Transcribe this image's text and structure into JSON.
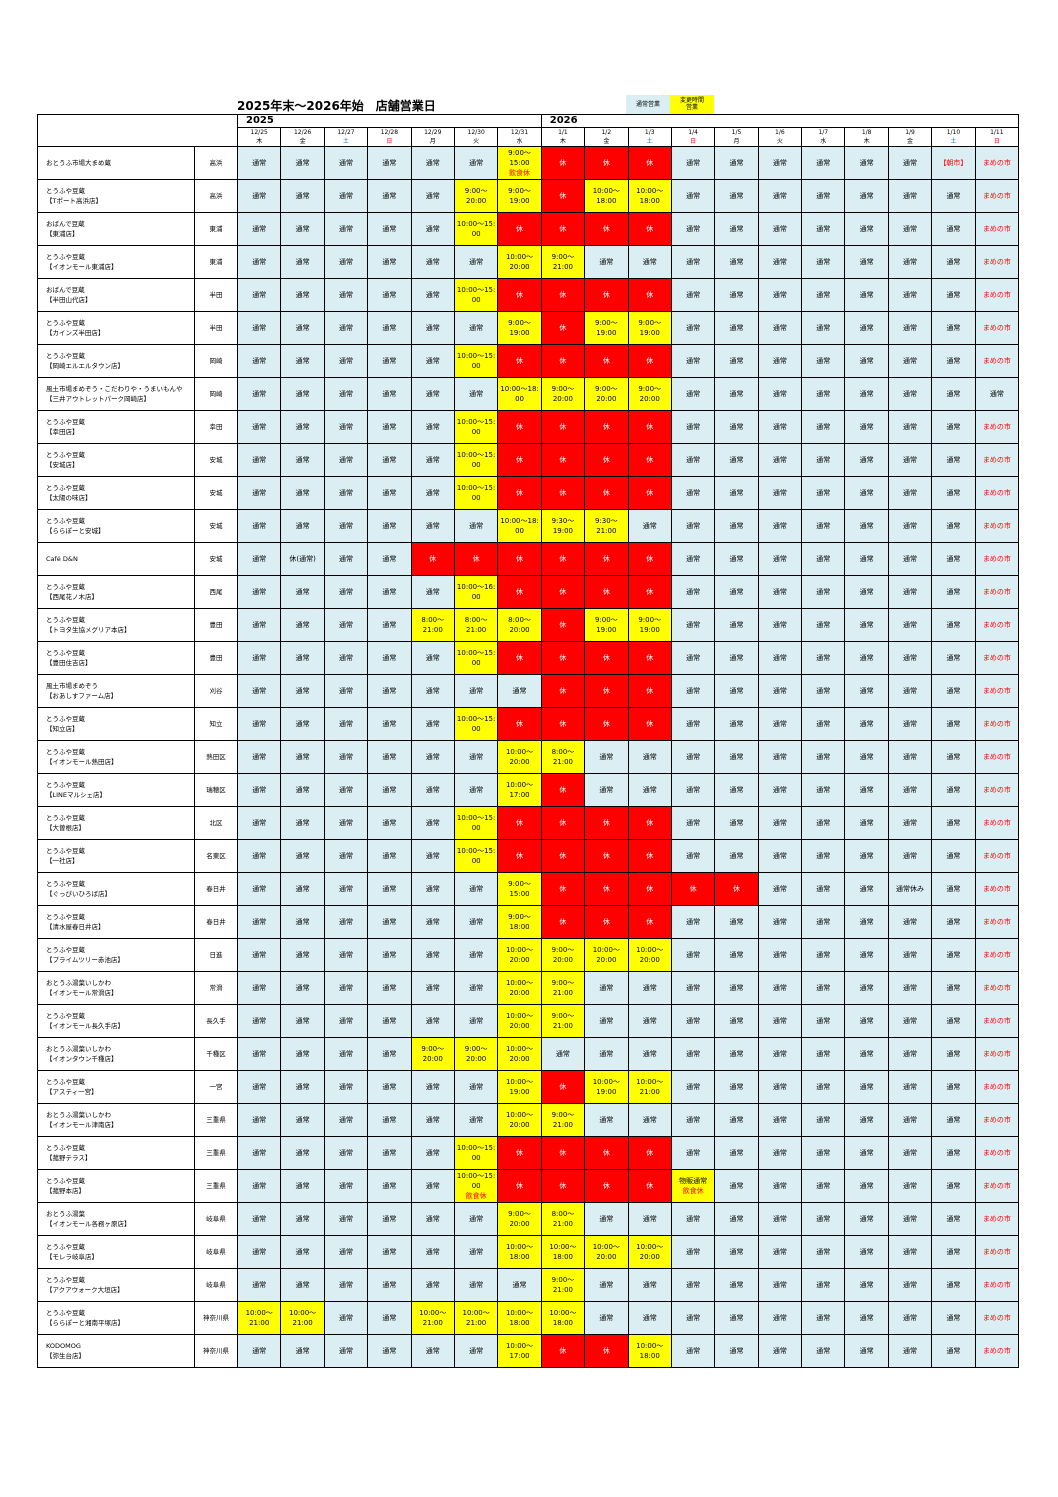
{
  "title": "2025年末～2026年始　店舗営業日",
  "legend": {
    "normal": "通常営業",
    "changed": "変更時間\n営業"
  },
  "years": {
    "y2025": "2025",
    "y2026": "2026"
  },
  "colors": {
    "normal": "#daeef3",
    "changed": "#ffff00",
    "closed": "#ff0000"
  },
  "dates": [
    "12/25",
    "12/26",
    "12/27",
    "12/28",
    "12/29",
    "12/30",
    "12/31",
    "1/1",
    "1/2",
    "1/3",
    "1/4",
    "1/5",
    "1/6",
    "1/7",
    "1/8",
    "1/9",
    "1/10",
    "1/11"
  ],
  "weekdays": [
    {
      "label": "木",
      "c": ""
    },
    {
      "label": "金",
      "c": ""
    },
    {
      "label": "土",
      "c": "b"
    },
    {
      "label": "日",
      "c": "r"
    },
    {
      "label": "月",
      "c": ""
    },
    {
      "label": "火",
      "c": ""
    },
    {
      "label": "水",
      "c": ""
    },
    {
      "label": "木",
      "c": ""
    },
    {
      "label": "金",
      "c": ""
    },
    {
      "label": "土",
      "c": "b"
    },
    {
      "label": "日",
      "c": "r"
    },
    {
      "label": "月",
      "c": ""
    },
    {
      "label": "火",
      "c": ""
    },
    {
      "label": "水",
      "c": ""
    },
    {
      "label": "木",
      "c": ""
    },
    {
      "label": "金",
      "c": ""
    },
    {
      "label": "土",
      "c": "b"
    },
    {
      "label": "日",
      "c": "r"
    }
  ],
  "stores": [
    {
      "name": [
        "おとうふ市場大まめ蔵"
      ],
      "area": "高浜",
      "days": [
        "n",
        "n",
        "n",
        "n",
        "n",
        "n",
        [
          "c",
          "9:00～",
          "15:00",
          {
            "t": "飲食休",
            "red": true
          }
        ],
        "x",
        "x",
        "x",
        "n",
        "n",
        "n",
        "n",
        "n",
        "n",
        [
          "r",
          "【朝市】"
        ],
        "m"
      ]
    },
    {
      "name": [
        "とうふや豆蔵",
        "【Tポート高浜店】"
      ],
      "area": "高浜",
      "days": [
        "n",
        "n",
        "n",
        "n",
        "n",
        [
          "c",
          "9:00～",
          "20:00"
        ],
        [
          "c",
          "9:00～",
          "19:00"
        ],
        "x",
        [
          "c",
          "10:00～",
          "18:00"
        ],
        [
          "c",
          "10:00～",
          "18:00"
        ],
        "n",
        "n",
        "n",
        "n",
        "n",
        "n",
        "n",
        "m"
      ]
    },
    {
      "name": [
        "おばんで豆蔵",
        "【東浦店】"
      ],
      "area": "東浦",
      "days": [
        "n",
        "n",
        "n",
        "n",
        "n",
        [
          "c",
          "10:00～15:",
          "00"
        ],
        "x",
        "x",
        "x",
        "x",
        "n",
        "n",
        "n",
        "n",
        "n",
        "n",
        "n",
        "m"
      ]
    },
    {
      "name": [
        "とうふや豆蔵",
        "【イオンモール東浦店】"
      ],
      "area": "東浦",
      "days": [
        "n",
        "n",
        "n",
        "n",
        "n",
        "n",
        [
          "c",
          "10:00～",
          "20:00"
        ],
        [
          "c",
          "9:00～",
          "21:00"
        ],
        "n",
        "n",
        "n",
        "n",
        "n",
        "n",
        "n",
        "n",
        "n",
        "m"
      ]
    },
    {
      "name": [
        "おばんで豆蔵",
        "【半田山代店】"
      ],
      "area": "半田",
      "days": [
        "n",
        "n",
        "n",
        "n",
        "n",
        [
          "c",
          "10:00～15:",
          "00"
        ],
        "x",
        "x",
        "x",
        "x",
        "n",
        "n",
        "n",
        "n",
        "n",
        "n",
        "n",
        "m"
      ]
    },
    {
      "name": [
        "とうふや豆蔵",
        "【カインズ半田店】"
      ],
      "area": "半田",
      "days": [
        "n",
        "n",
        "n",
        "n",
        "n",
        "n",
        [
          "c",
          "9:00～",
          "19:00"
        ],
        "x",
        [
          "c",
          "9:00～",
          "19:00"
        ],
        [
          "c",
          "9:00～",
          "19:00"
        ],
        "n",
        "n",
        "n",
        "n",
        "n",
        "n",
        "n",
        "m"
      ]
    },
    {
      "name": [
        "とうふや豆蔵",
        "【岡崎エルエルタウン店】"
      ],
      "area": "岡崎",
      "days": [
        "n",
        "n",
        "n",
        "n",
        "n",
        [
          "c",
          "10:00～15:",
          "00"
        ],
        "x",
        "x",
        "x",
        "x",
        "n",
        "n",
        "n",
        "n",
        "n",
        "n",
        "n",
        "m"
      ]
    },
    {
      "name": [
        "風土市場まめぞう・こだわりや・うまいもんや",
        "【三井アウトレットパーク岡崎店】"
      ],
      "area": "岡崎",
      "days": [
        "n",
        "n",
        "n",
        "n",
        "n",
        "n",
        [
          "c",
          "10:00～18:",
          "00"
        ],
        [
          "c",
          "9:00～",
          "20:00"
        ],
        [
          "c",
          "9:00～",
          "20:00"
        ],
        [
          "c",
          "9:00～",
          "20:00"
        ],
        "n",
        "n",
        "n",
        "n",
        "n",
        "n",
        "n",
        "n"
      ]
    },
    {
      "name": [
        "とうふや豆蔵",
        "【幸田店】"
      ],
      "area": "幸田",
      "days": [
        "n",
        "n",
        "n",
        "n",
        "n",
        [
          "c",
          "10:00～15:",
          "00"
        ],
        "x",
        "x",
        "x",
        "x",
        "n",
        "n",
        "n",
        "n",
        "n",
        "n",
        "n",
        "m"
      ]
    },
    {
      "name": [
        "とうふや豆蔵",
        "【安城店】"
      ],
      "area": "安城",
      "days": [
        "n",
        "n",
        "n",
        "n",
        "n",
        [
          "c",
          "10:00～15:",
          "00"
        ],
        "x",
        "x",
        "x",
        "x",
        "n",
        "n",
        "n",
        "n",
        "n",
        "n",
        "n",
        "m"
      ]
    },
    {
      "name": [
        "とうふや豆蔵",
        "【太陽の味店】"
      ],
      "area": "安城",
      "days": [
        "n",
        "n",
        "n",
        "n",
        "n",
        [
          "c",
          "10:00～15:",
          "00"
        ],
        "x",
        "x",
        "x",
        "x",
        "n",
        "n",
        "n",
        "n",
        "n",
        "n",
        "n",
        "m"
      ]
    },
    {
      "name": [
        "とうふや豆蔵",
        "【ららぽーと安城】"
      ],
      "area": "安城",
      "days": [
        "n",
        "n",
        "n",
        "n",
        "n",
        "n",
        [
          "c",
          "10:00～18:",
          "00"
        ],
        [
          "c",
          "9:30～",
          "19:00"
        ],
        [
          "c",
          "9:30～",
          "21:00"
        ],
        "n",
        "n",
        "n",
        "n",
        "n",
        "n",
        "n",
        "n",
        "m"
      ]
    },
    {
      "name": [
        "Café D&N"
      ],
      "area": "安城",
      "days": [
        "n",
        [
          "n",
          "休(通常)"
        ],
        "n",
        "n",
        "x",
        "x",
        "x",
        "x",
        "x",
        "x",
        "n",
        "n",
        "n",
        "n",
        "n",
        "n",
        "n",
        "m"
      ]
    },
    {
      "name": [
        "とうふや豆蔵",
        "【西尾花ノ木店】"
      ],
      "area": "西尾",
      "days": [
        "n",
        "n",
        "n",
        "n",
        "n",
        [
          "c",
          "10:00～16:",
          "00"
        ],
        "x",
        "x",
        "x",
        "x",
        "n",
        "n",
        "n",
        "n",
        "n",
        "n",
        "n",
        "m"
      ]
    },
    {
      "name": [
        "とうふや豆蔵",
        "【トヨタ生協メグリア本店】"
      ],
      "area": "豊田",
      "days": [
        "n",
        "n",
        "n",
        "n",
        [
          "c",
          "8:00～",
          "21:00"
        ],
        [
          "c",
          "8:00～",
          "21:00"
        ],
        [
          "c",
          "8:00～",
          "20:00"
        ],
        "x",
        [
          "c",
          "9:00～",
          "19:00"
        ],
        [
          "c",
          "9:00～",
          "19:00"
        ],
        "n",
        "n",
        "n",
        "n",
        "n",
        "n",
        "n",
        "m"
      ]
    },
    {
      "name": [
        "とうふや豆蔵",
        "【豊田住吉店】"
      ],
      "area": "豊田",
      "days": [
        "n",
        "n",
        "n",
        "n",
        "n",
        [
          "c",
          "10:00～15:",
          "00"
        ],
        "x",
        "x",
        "x",
        "x",
        "n",
        "n",
        "n",
        "n",
        "n",
        "n",
        "n",
        "m"
      ]
    },
    {
      "name": [
        "風土市場まめぞう",
        "【おあしすファーム店】"
      ],
      "area": "刈谷",
      "days": [
        "n",
        "n",
        "n",
        "n",
        "n",
        "n",
        "n",
        "x",
        "x",
        "x",
        "n",
        "n",
        "n",
        "n",
        "n",
        "n",
        "n",
        "m"
      ]
    },
    {
      "name": [
        "とうふや豆蔵",
        "【知立店】"
      ],
      "area": "知立",
      "days": [
        "n",
        "n",
        "n",
        "n",
        "n",
        [
          "c",
          "10:00～15:",
          "00"
        ],
        "x",
        "x",
        "x",
        "x",
        "n",
        "n",
        "n",
        "n",
        "n",
        "n",
        "n",
        "m"
      ]
    },
    {
      "name": [
        "とうふや豆蔵",
        "【イオンモール熱田店】"
      ],
      "area": "熱田区",
      "days": [
        "n",
        "n",
        "n",
        "n",
        "n",
        "n",
        [
          "c",
          "10:00～",
          "20:00"
        ],
        [
          "c",
          "8:00～",
          "21:00"
        ],
        "n",
        "n",
        "n",
        "n",
        "n",
        "n",
        "n",
        "n",
        "n",
        "m"
      ]
    },
    {
      "name": [
        "とうふや豆蔵",
        "【LINEマルシェ店】"
      ],
      "area": "瑞穂区",
      "days": [
        "n",
        "n",
        "n",
        "n",
        "n",
        "n",
        [
          "c",
          "10:00～",
          "17:00"
        ],
        "x",
        "n",
        "n",
        "n",
        "n",
        "n",
        "n",
        "n",
        "n",
        "n",
        "m"
      ]
    },
    {
      "name": [
        "とうふや豆蔵",
        "【大曽根店】"
      ],
      "area": "北区",
      "days": [
        "n",
        "n",
        "n",
        "n",
        "n",
        [
          "c",
          "10:00～15:",
          "00"
        ],
        "x",
        "x",
        "x",
        "x",
        "n",
        "n",
        "n",
        "n",
        "n",
        "n",
        "n",
        "m"
      ]
    },
    {
      "name": [
        "とうふや豆蔵",
        "【一社店】"
      ],
      "area": "名東区",
      "days": [
        "n",
        "n",
        "n",
        "n",
        "n",
        [
          "c",
          "10:00～15:",
          "00"
        ],
        "x",
        "x",
        "x",
        "x",
        "n",
        "n",
        "n",
        "n",
        "n",
        "n",
        "n",
        "m"
      ]
    },
    {
      "name": [
        "とうふや豆蔵",
        "【ぐっぴいひろば店】"
      ],
      "area": "春日井",
      "days": [
        "n",
        "n",
        "n",
        "n",
        "n",
        "n",
        [
          "c",
          "9:00～",
          "15:00"
        ],
        "x",
        "x",
        "x",
        "x",
        "x",
        "n",
        "n",
        "n",
        [
          "n",
          "通常休み"
        ],
        "n",
        "m"
      ]
    },
    {
      "name": [
        "とうふや豆蔵",
        "【清水屋春日井店】"
      ],
      "area": "春日井",
      "days": [
        "n",
        "n",
        "n",
        "n",
        "n",
        "n",
        [
          "c",
          "9:00～",
          "18:00"
        ],
        "x",
        "x",
        "x",
        "n",
        "n",
        "n",
        "n",
        "n",
        "n",
        "n",
        "m"
      ]
    },
    {
      "name": [
        "とうふや豆蔵",
        "【プライムツリー赤池店】"
      ],
      "area": "日進",
      "days": [
        "n",
        "n",
        "n",
        "n",
        "n",
        "n",
        [
          "c",
          "10:00～",
          "20:00"
        ],
        [
          "c",
          "9:00～",
          "20:00"
        ],
        [
          "c",
          "10:00～",
          "20:00"
        ],
        [
          "c",
          "10:00～",
          "20:00"
        ],
        "n",
        "n",
        "n",
        "n",
        "n",
        "n",
        "n",
        "m"
      ]
    },
    {
      "name": [
        "おとうふ湯葉いしかわ",
        "【イオンモール常滑店】"
      ],
      "area": "常滑",
      "days": [
        "n",
        "n",
        "n",
        "n",
        "n",
        "n",
        [
          "c",
          "10:00～",
          "20:00"
        ],
        [
          "c",
          "9:00～",
          "21:00"
        ],
        "n",
        "n",
        "n",
        "n",
        "n",
        "n",
        "n",
        "n",
        "n",
        "m"
      ]
    },
    {
      "name": [
        "とうふや豆蔵",
        "【イオンモール長久手店】"
      ],
      "area": "長久手",
      "days": [
        "n",
        "n",
        "n",
        "n",
        "n",
        "n",
        [
          "c",
          "10:00～",
          "20:00"
        ],
        [
          "c",
          "9:00～",
          "21:00"
        ],
        "n",
        "n",
        "n",
        "n",
        "n",
        "n",
        "n",
        "n",
        "n",
        "m"
      ]
    },
    {
      "name": [
        "おとうふ湯葉いしかわ",
        "【イオンタウン千種店】"
      ],
      "area": "千種区",
      "days": [
        "n",
        "n",
        "n",
        "n",
        [
          "c",
          "9:00～",
          "20:00"
        ],
        [
          "c",
          "9:00～",
          "20:00"
        ],
        [
          "c",
          "10:00～",
          "20:00"
        ],
        "n",
        "n",
        "n",
        "n",
        "n",
        "n",
        "n",
        "n",
        "n",
        "n",
        "m"
      ]
    },
    {
      "name": [
        "とうふや豆蔵",
        "【アスティ一宮】"
      ],
      "area": "一宮",
      "days": [
        "n",
        "n",
        "n",
        "n",
        "n",
        "n",
        [
          "c",
          "10:00～",
          "19:00"
        ],
        "x",
        [
          "c",
          "10:00～",
          "19:00"
        ],
        [
          "c",
          "10:00～",
          "21:00"
        ],
        "n",
        "n",
        "n",
        "n",
        "n",
        "n",
        "n",
        "m"
      ]
    },
    {
      "name": [
        "おとうふ湯葉いしかわ",
        "【イオンモール津南店】"
      ],
      "area": "三重県",
      "days": [
        "n",
        "n",
        "n",
        "n",
        "n",
        "n",
        [
          "c",
          "10:00～",
          "20:00"
        ],
        [
          "c",
          "9:00～",
          "21:00"
        ],
        "n",
        "n",
        "n",
        "n",
        "n",
        "n",
        "n",
        "n",
        "n",
        "m"
      ]
    },
    {
      "name": [
        "とうふや豆蔵",
        "【菰野テラス】"
      ],
      "area": "三重県",
      "days": [
        "n",
        "n",
        "n",
        "n",
        "n",
        [
          "c",
          "10:00～15:",
          "00"
        ],
        "x",
        "x",
        "x",
        "x",
        "n",
        "n",
        "n",
        "n",
        "n",
        "n",
        "n",
        "m"
      ]
    },
    {
      "name": [
        "とうふや豆蔵",
        "【菰野本店】"
      ],
      "area": "三重県",
      "days": [
        "n",
        "n",
        "n",
        "n",
        "n",
        [
          "c",
          "10:00～15:",
          "00",
          {
            "t": "飲食休",
            "red": true
          }
        ],
        "x",
        "x",
        "x",
        "x",
        [
          "c",
          "物販通常",
          {
            "t": "飲食休",
            "red": true
          }
        ],
        "n",
        "n",
        "n",
        "n",
        "n",
        "n",
        "m"
      ]
    },
    {
      "name": [
        "おとうふ湯葉",
        "【イオンモール各務ヶ原店】"
      ],
      "area": "岐阜県",
      "days": [
        "n",
        "n",
        "n",
        "n",
        "n",
        "n",
        [
          "c",
          "9:00～",
          "20:00"
        ],
        [
          "c",
          "8:00～",
          "21:00"
        ],
        "n",
        "n",
        "n",
        "n",
        "n",
        "n",
        "n",
        "n",
        "n",
        "m"
      ]
    },
    {
      "name": [
        "とうふや豆蔵",
        "【モレラ岐阜店】"
      ],
      "area": "岐阜県",
      "days": [
        "n",
        "n",
        "n",
        "n",
        "n",
        "n",
        [
          "c",
          "10:00～",
          "18:00"
        ],
        [
          "c",
          "10:00～",
          "18:00"
        ],
        [
          "c",
          "10:00～",
          "20:00"
        ],
        [
          "c",
          "10:00～",
          "20:00"
        ],
        "n",
        "n",
        "n",
        "n",
        "n",
        "n",
        "n",
        "m"
      ]
    },
    {
      "name": [
        "とうふや豆蔵",
        "【アクアウォーク大垣店】"
      ],
      "area": "岐阜県",
      "days": [
        "n",
        "n",
        "n",
        "n",
        "n",
        "n",
        "n",
        [
          "c",
          "9:00～",
          "21:00"
        ],
        "n",
        "n",
        "n",
        "n",
        "n",
        "n",
        "n",
        "n",
        "n",
        "m"
      ]
    },
    {
      "name": [
        "とうふや豆蔵",
        "【ららぽーと湘南平塚店】"
      ],
      "area": "神奈川県",
      "days": [
        [
          "c",
          "10:00～",
          "21:00"
        ],
        [
          "c",
          "10:00～",
          "21:00"
        ],
        "n",
        "n",
        [
          "c",
          "10:00～",
          "21:00"
        ],
        [
          "c",
          "10:00～",
          "21:00"
        ],
        [
          "c",
          "10:00～",
          "18:00"
        ],
        [
          "c",
          "10:00～",
          "18:00"
        ],
        "n",
        "n",
        "n",
        "n",
        "n",
        "n",
        "n",
        "n",
        "n",
        "m"
      ]
    },
    {
      "name": [
        "KODOMOG",
        "【弥生台店】"
      ],
      "area": "神奈川県",
      "days": [
        "n",
        "n",
        "n",
        "n",
        "n",
        "n",
        [
          "c",
          "10:00～",
          "17:00"
        ],
        "x",
        "x",
        [
          "c",
          "10:00～",
          "18:00"
        ],
        "n",
        "n",
        "n",
        "n",
        "n",
        "n",
        "n",
        "m"
      ]
    }
  ],
  "labels": {
    "normal": "通常",
    "closed": "休",
    "market": "まめの市"
  }
}
